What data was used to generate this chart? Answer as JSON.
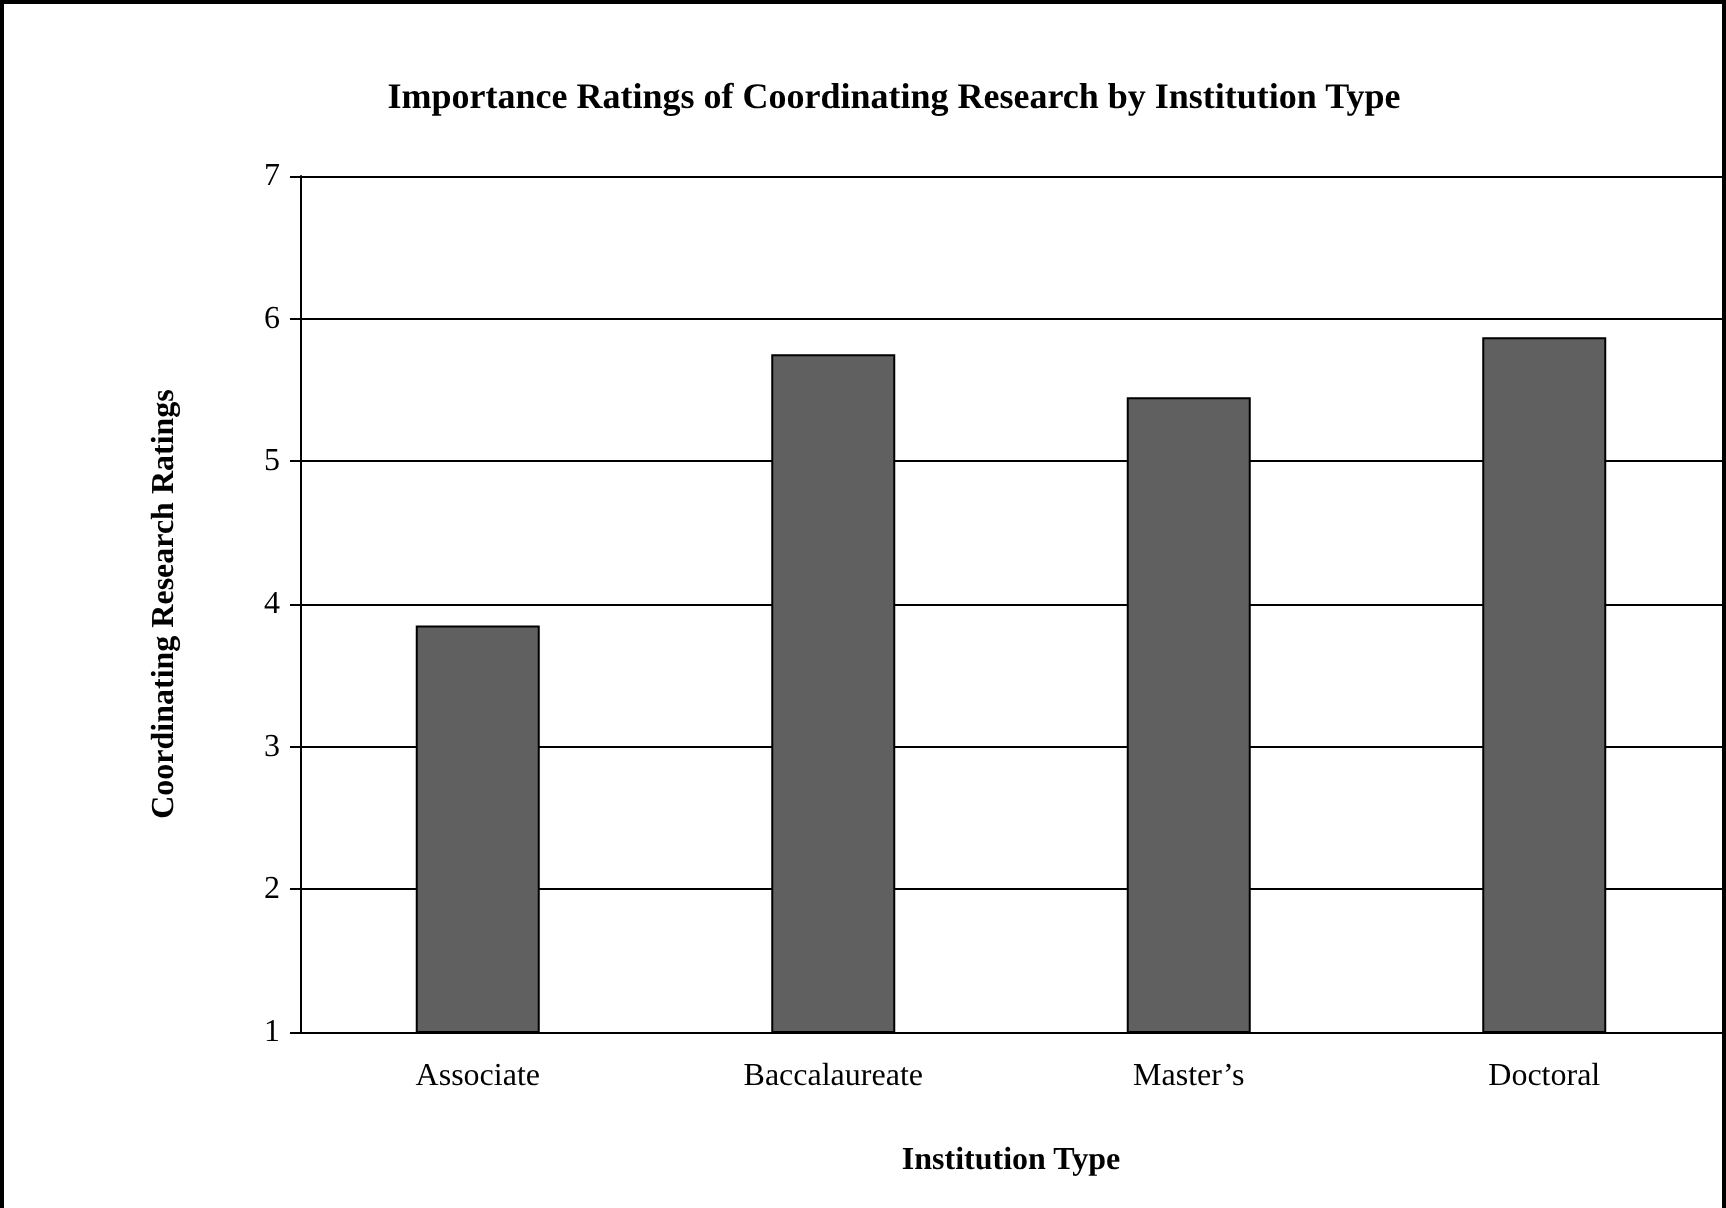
{
  "chart_data": {
    "type": "bar",
    "title": "Importance Ratings of Coordinating Research by Institution Type",
    "xlabel": "Institution Type",
    "ylabel": "Coordinating Research Ratings",
    "categories": [
      "Associate",
      "Baccalaureate",
      "Master’s",
      "Doctoral"
    ],
    "values": [
      3.85,
      5.75,
      5.45,
      5.87
    ],
    "color": "#606060",
    "ylim": [
      1,
      7
    ],
    "yticks": [
      1,
      2,
      3,
      4,
      5,
      6,
      7
    ],
    "grid": "y"
  }
}
